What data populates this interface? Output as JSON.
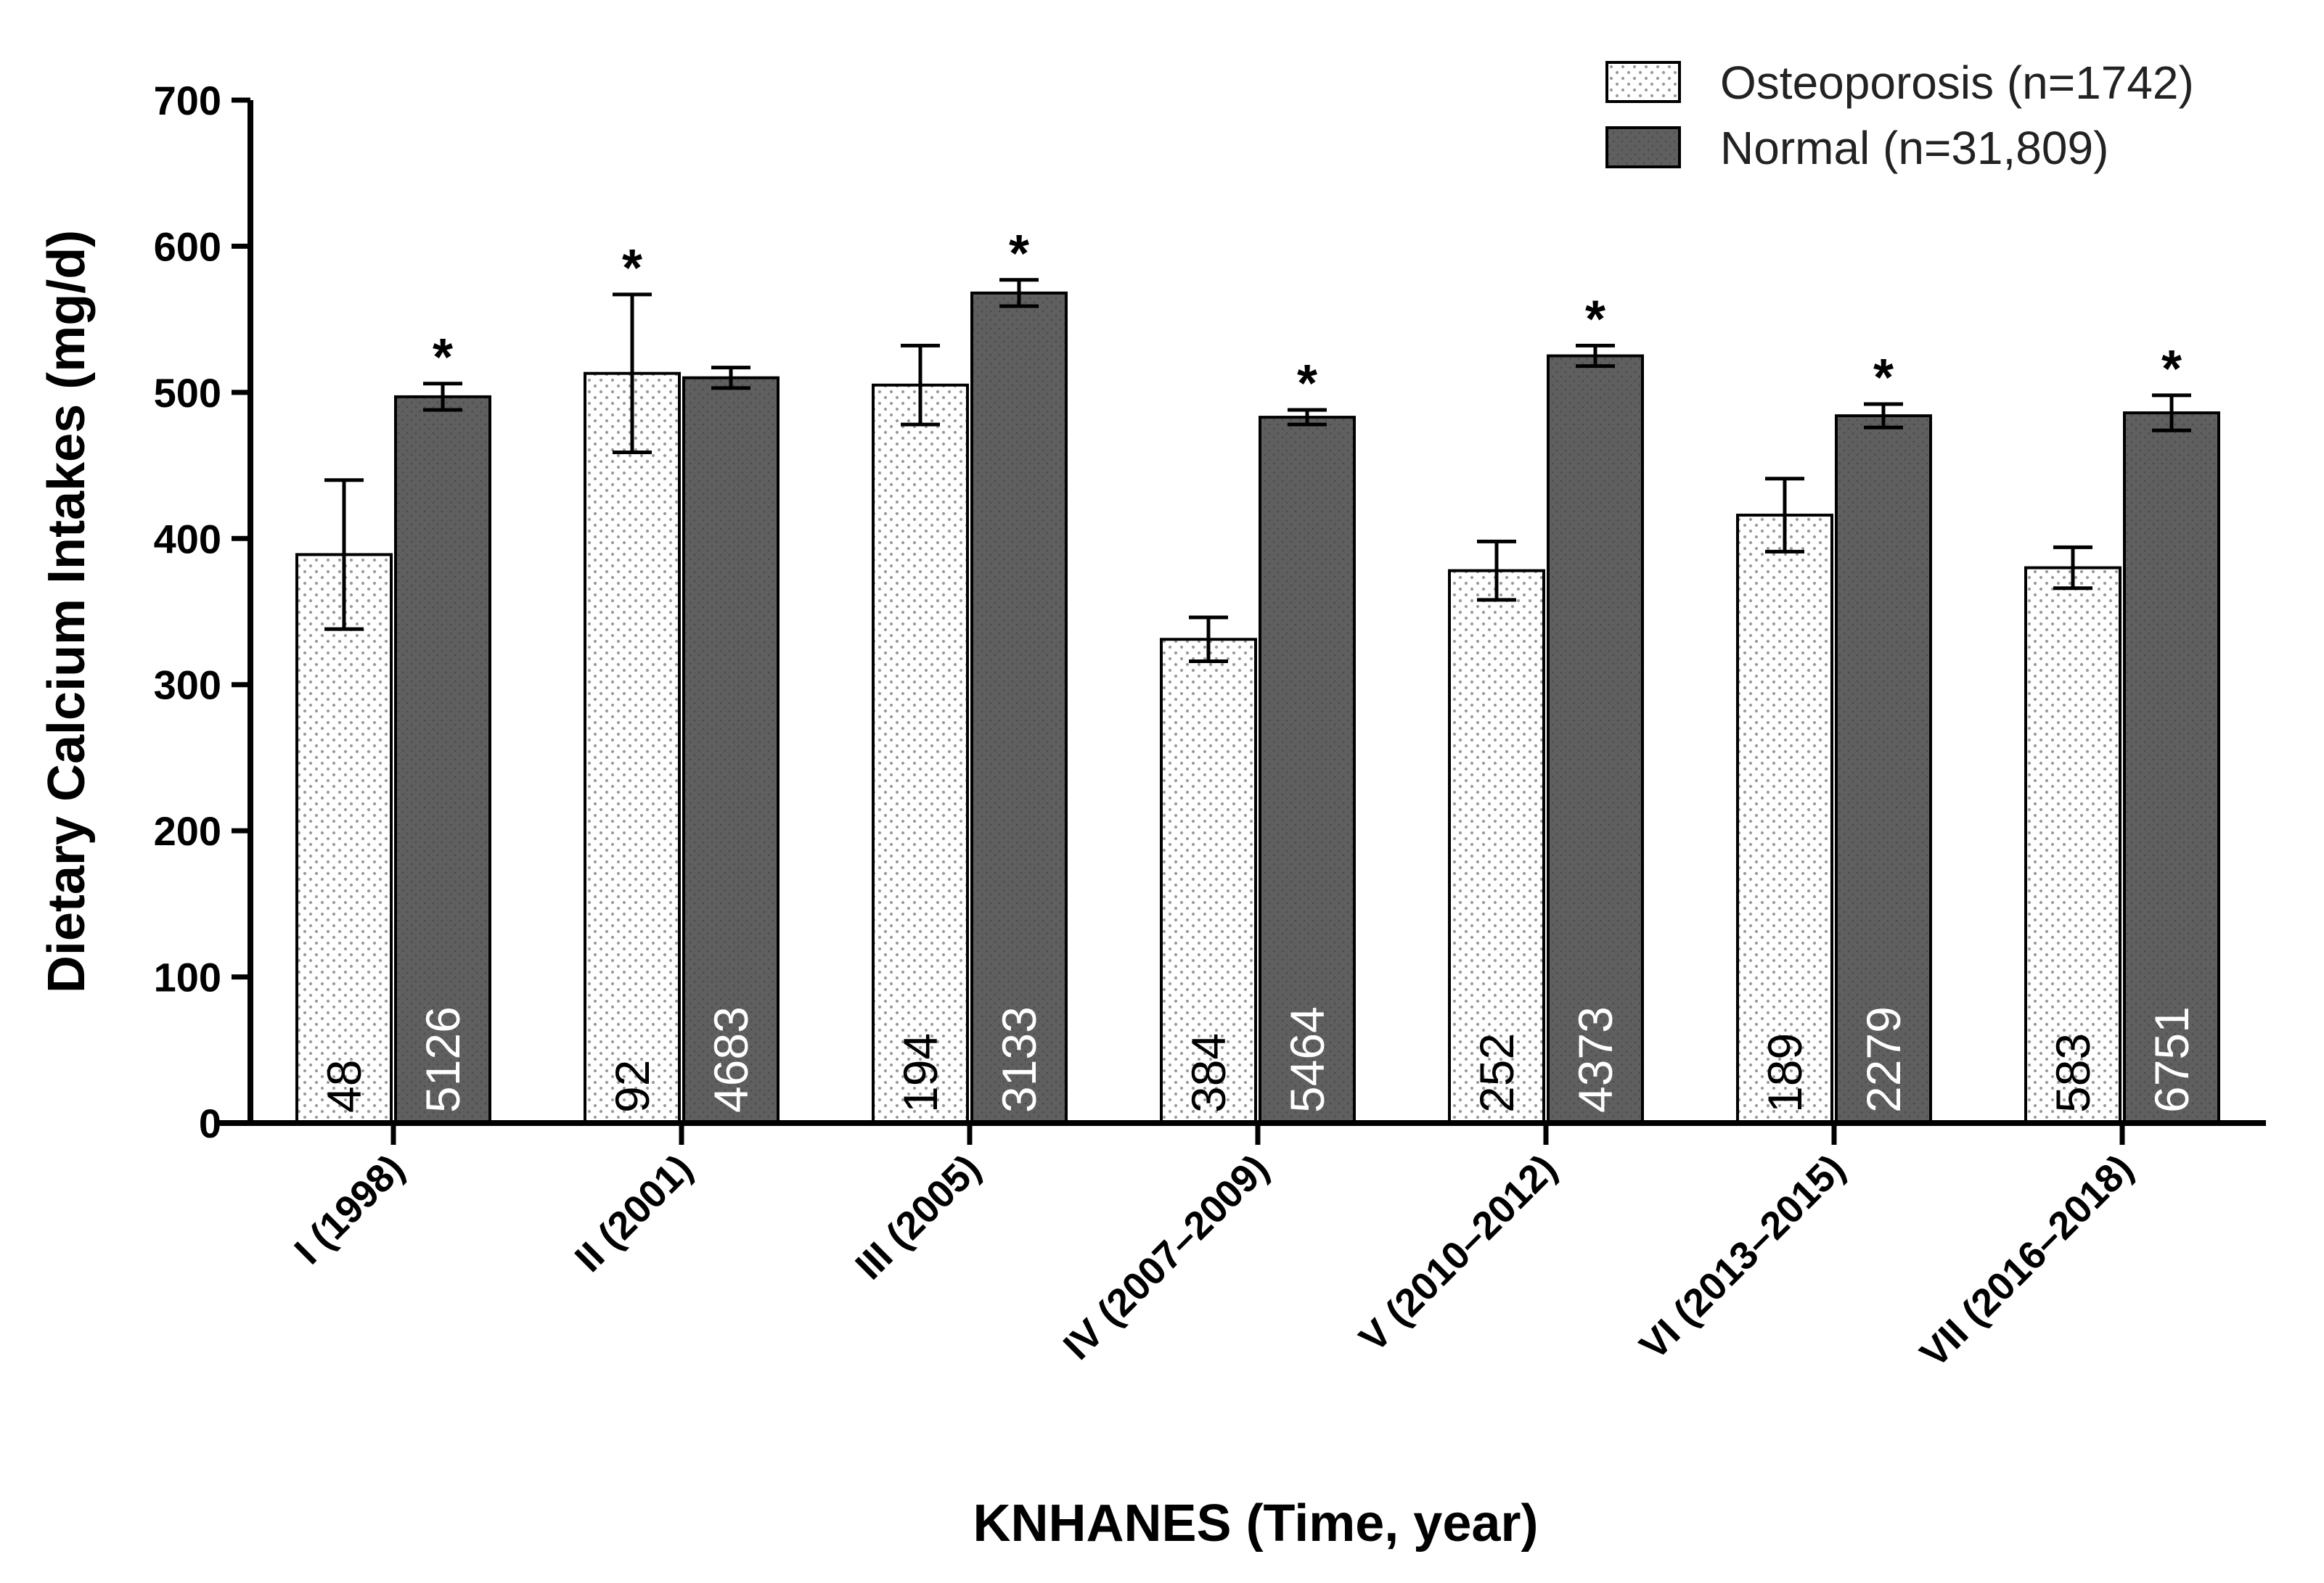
{
  "chart_data": {
    "type": "bar",
    "ylabel": "Dietary Calcium Intakes (mg/d)",
    "xlabel": "KNHANES (Time, year)",
    "ylim": [
      0,
      700
    ],
    "yticks": [
      0,
      100,
      200,
      300,
      400,
      500,
      600,
      700
    ],
    "grid": false,
    "legend_position": "top-right",
    "categories": [
      "I (1998)",
      "II (2001)",
      "III (2005)",
      "IV (2007–2009)",
      "V (2010–2012)",
      "VI (2013–2015)",
      "VII (2016–2018)"
    ],
    "series": [
      {
        "name": "Osteoporosis (n=1742)",
        "style": "dotted",
        "color": "#ffffff",
        "values": [
          389,
          513,
          505,
          331,
          378,
          416,
          380
        ],
        "error": [
          51,
          54,
          27,
          15,
          20,
          25,
          14
        ],
        "n": [
          "48",
          "92",
          "194",
          "384",
          "252",
          "189",
          "583"
        ],
        "significant": [
          false,
          true,
          false,
          false,
          false,
          false,
          false
        ]
      },
      {
        "name": "Normal (n=31,809)",
        "style": "solid",
        "color": "#5f5f5f",
        "values": [
          497,
          510,
          568,
          483,
          525,
          484,
          486
        ],
        "error": [
          9,
          7,
          9,
          5,
          7,
          8,
          12
        ],
        "n": [
          "5126",
          "4683",
          "3133",
          "5464",
          "4373",
          "2279",
          "6751"
        ],
        "significant": [
          true,
          false,
          true,
          true,
          true,
          true,
          true
        ]
      }
    ],
    "significance_marker": "*"
  }
}
